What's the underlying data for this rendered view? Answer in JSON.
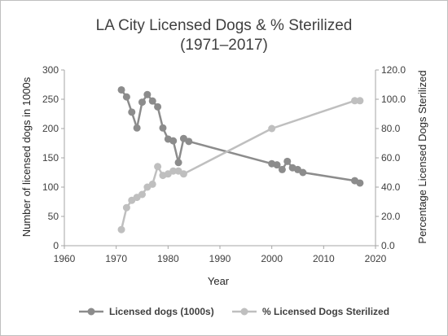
{
  "chart_data": {
    "type": "scatter",
    "title": [
      "LA City Licensed Dogs & % Sterilized",
      "(1971–2017)"
    ],
    "xlabel": "Year",
    "ylabel": "Number of licensed dogs in 1000s",
    "y2label": "Percentage Licensed Dogs Sterilized",
    "xlim": [
      1960,
      2020
    ],
    "ylim": [
      0,
      300
    ],
    "y2lim": [
      0,
      120
    ],
    "x_ticks": [
      "1960",
      "1970",
      "1980",
      "1990",
      "2000",
      "2010",
      "2020"
    ],
    "y_ticks": [
      "0",
      "50",
      "100",
      "150",
      "200",
      "250",
      "300"
    ],
    "y2_ticks": [
      "0.0",
      "20.0",
      "40.0",
      "60.0",
      "80.0",
      "100.0",
      "120.0"
    ],
    "grid": false,
    "legend_position": "bottom",
    "series": [
      {
        "name": "Licensed dogs (1000s)",
        "axis": "left",
        "color": "#8c8c8c",
        "lines": true,
        "points": [
          [
            1971,
            266
          ],
          [
            1972,
            254
          ],
          [
            1973,
            228
          ],
          [
            1974,
            201
          ],
          [
            1975,
            245
          ],
          [
            1976,
            258
          ],
          [
            1977,
            247
          ],
          [
            1978,
            237
          ],
          [
            1979,
            201
          ],
          [
            1980,
            182
          ],
          [
            1981,
            179
          ],
          [
            1982,
            142
          ],
          [
            1983,
            183
          ],
          [
            1984,
            178
          ],
          [
            2000,
            140
          ],
          [
            2001,
            138
          ],
          [
            2002,
            130
          ],
          [
            2003,
            144
          ],
          [
            2004,
            133
          ],
          [
            2005,
            130
          ],
          [
            2006,
            125
          ],
          [
            2016,
            111
          ],
          [
            2017,
            107
          ]
        ]
      },
      {
        "name": "% Licensed Dogs Sterilized",
        "axis": "right",
        "color": "#bfbfbf",
        "lines": true,
        "points": [
          [
            1971,
            11
          ],
          [
            1972,
            26
          ],
          [
            1973,
            31
          ],
          [
            1974,
            33
          ],
          [
            1975,
            35
          ],
          [
            1976,
            40
          ],
          [
            1977,
            42
          ],
          [
            1978,
            54
          ],
          [
            1979,
            48
          ],
          [
            1980,
            49
          ],
          [
            1981,
            51
          ],
          [
            1982,
            51
          ],
          [
            1983,
            49
          ],
          [
            2000,
            80
          ],
          [
            2016,
            99
          ],
          [
            2017,
            99
          ]
        ]
      }
    ]
  }
}
